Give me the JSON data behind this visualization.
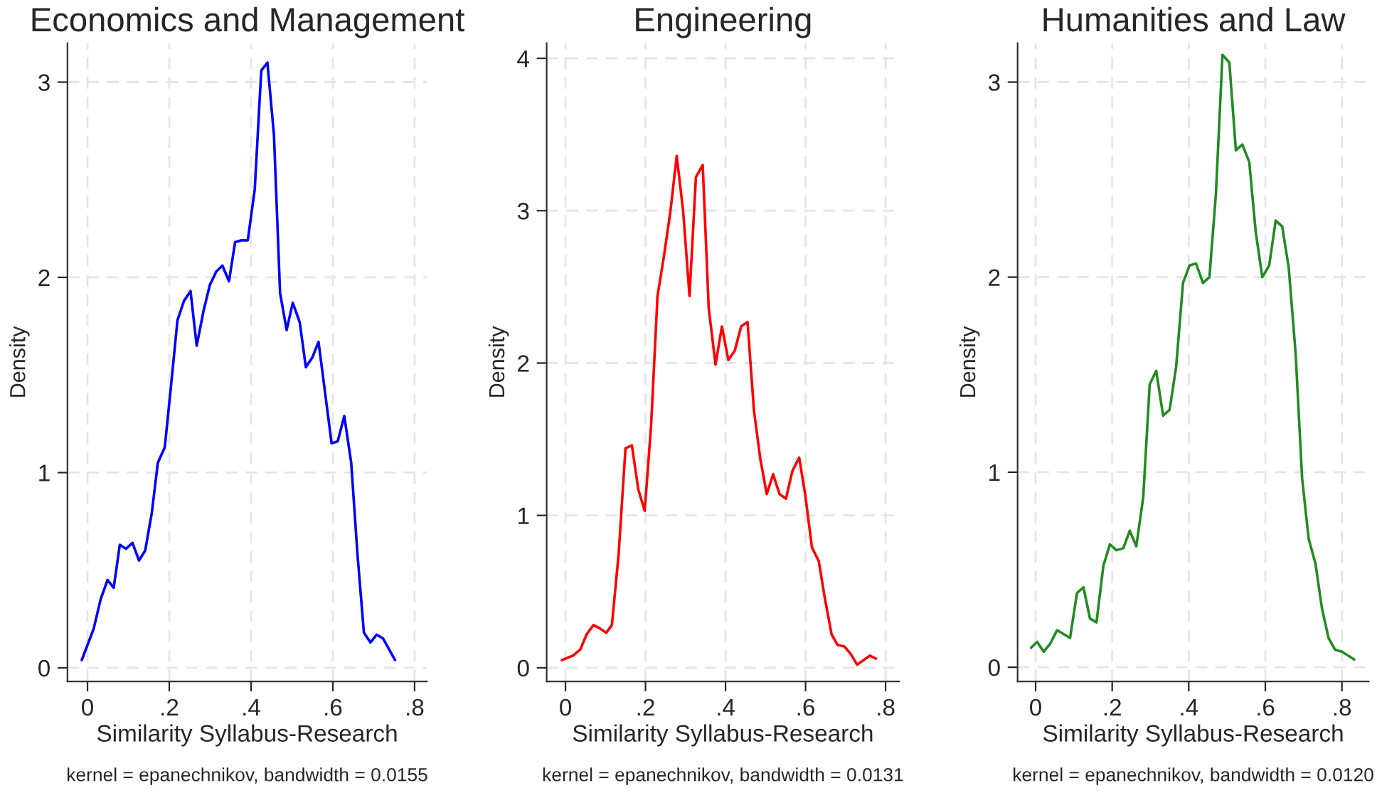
{
  "chart_data": [
    {
      "type": "line",
      "title": "Economics and Management",
      "xlabel": "Similarity Syllabus-Research",
      "ylabel": "Density",
      "annotations": [
        "kernel = epanechnikov, bandwidth = 0.0155"
      ],
      "grid": true,
      "xlim": [
        -0.049,
        0.83
      ],
      "ylim": [
        -0.07,
        3.2
      ],
      "xticks": [
        0,
        {
          "value": 0.2,
          "label": ".2"
        },
        {
          "value": 0.4,
          "label": ".4"
        },
        {
          "value": 0.6,
          "label": ".6"
        },
        {
          "value": 0.8,
          "label": ".8"
        }
      ],
      "yticks": [
        0,
        1,
        2,
        3
      ],
      "x": [
        -0.014,
        0.015,
        0.032,
        0.049,
        0.064,
        0.079,
        0.094,
        0.11,
        0.126,
        0.141,
        0.157,
        0.172,
        0.189,
        0.204,
        0.22,
        0.236,
        0.252,
        0.267,
        0.284,
        0.299,
        0.315,
        0.33,
        0.346,
        0.361,
        0.377,
        0.392,
        0.409,
        0.425,
        0.44,
        0.456,
        0.471,
        0.487,
        0.502,
        0.519,
        0.534,
        0.55,
        0.565,
        0.581,
        0.597,
        0.612,
        0.628,
        0.645,
        0.66,
        0.676,
        0.692,
        0.707,
        0.723,
        0.752
      ],
      "series": [
        {
          "color": "#0000ff",
          "values": [
            0.04,
            0.2,
            0.35,
            0.45,
            0.41,
            0.63,
            0.61,
            0.64,
            0.55,
            0.6,
            0.79,
            1.05,
            1.13,
            1.44,
            1.78,
            1.88,
            1.93,
            1.65,
            1.83,
            1.96,
            2.03,
            2.06,
            1.98,
            2.18,
            2.19,
            2.19,
            2.45,
            3.06,
            3.1,
            2.73,
            1.92,
            1.73,
            1.87,
            1.77,
            1.54,
            1.59,
            1.67,
            1.41,
            1.15,
            1.16,
            1.29,
            1.05,
            0.59,
            0.18,
            0.13,
            0.17,
            0.15,
            0.04
          ]
        }
      ]
    },
    {
      "type": "line",
      "title": "Engineering",
      "xlabel": "Similarity Syllabus-Research",
      "ylabel": "Density",
      "annotations": [
        "kernel = epanechnikov, bandwidth = 0.0131"
      ],
      "grid": true,
      "xlim": [
        -0.047,
        0.834
      ],
      "ylim": [
        -0.09,
        4.1
      ],
      "xticks": [
        0,
        {
          "value": 0.2,
          "label": ".2"
        },
        {
          "value": 0.4,
          "label": ".4"
        },
        {
          "value": 0.6,
          "label": ".6"
        },
        {
          "value": 0.8,
          "label": ".8"
        }
      ],
      "yticks": [
        0,
        1,
        2,
        3,
        4
      ],
      "x": [
        -0.009,
        0.019,
        0.037,
        0.053,
        0.07,
        0.085,
        0.102,
        0.116,
        0.133,
        0.15,
        0.166,
        0.182,
        0.198,
        0.214,
        0.23,
        0.246,
        0.262,
        0.278,
        0.294,
        0.31,
        0.326,
        0.343,
        0.358,
        0.375,
        0.391,
        0.407,
        0.423,
        0.439,
        0.455,
        0.471,
        0.487,
        0.503,
        0.519,
        0.535,
        0.551,
        0.567,
        0.584,
        0.599,
        0.616,
        0.633,
        0.648,
        0.665,
        0.68,
        0.697,
        0.713,
        0.729,
        0.761,
        0.776
      ],
      "series": [
        {
          "color": "#ff0000",
          "values": [
            0.05,
            0.08,
            0.12,
            0.22,
            0.28,
            0.26,
            0.23,
            0.28,
            0.75,
            1.44,
            1.46,
            1.17,
            1.03,
            1.59,
            2.44,
            2.7,
            2.99,
            3.36,
            3.0,
            2.44,
            3.22,
            3.3,
            2.36,
            1.99,
            2.24,
            2.02,
            2.08,
            2.24,
            2.27,
            1.69,
            1.37,
            1.14,
            1.27,
            1.14,
            1.11,
            1.29,
            1.38,
            1.14,
            0.79,
            0.7,
            0.46,
            0.22,
            0.15,
            0.14,
            0.09,
            0.02,
            0.08,
            0.06
          ]
        }
      ]
    },
    {
      "type": "line",
      "title": "Humanities and Law",
      "xlabel": "Similarity Syllabus-Research",
      "ylabel": "Density",
      "annotations": [
        "kernel = epanechnikov, bandwidth = 0.0120"
      ],
      "grid": true,
      "xlim": [
        -0.047,
        0.87
      ],
      "ylim": [
        -0.073,
        3.2
      ],
      "xticks": [
        0,
        {
          "value": 0.2,
          "label": ".2"
        },
        {
          "value": 0.4,
          "label": ".4"
        },
        {
          "value": 0.6,
          "label": ".6"
        },
        {
          "value": 0.8,
          "label": ".8"
        }
      ],
      "yticks": [
        0,
        1,
        2,
        3
      ],
      "x": [
        -0.012,
        0.004,
        0.021,
        0.038,
        0.056,
        0.073,
        0.09,
        0.108,
        0.125,
        0.142,
        0.159,
        0.177,
        0.194,
        0.211,
        0.229,
        0.246,
        0.263,
        0.281,
        0.298,
        0.315,
        0.333,
        0.35,
        0.367,
        0.385,
        0.402,
        0.419,
        0.437,
        0.454,
        0.471,
        0.488,
        0.506,
        0.523,
        0.54,
        0.558,
        0.575,
        0.592,
        0.61,
        0.627,
        0.644,
        0.661,
        0.679,
        0.696,
        0.713,
        0.731,
        0.748,
        0.765,
        0.782,
        0.8,
        0.832
      ],
      "series": [
        {
          "color": "#228b22",
          "values": [
            0.1,
            0.13,
            0.08,
            0.12,
            0.19,
            0.17,
            0.15,
            0.38,
            0.41,
            0.25,
            0.23,
            0.52,
            0.63,
            0.6,
            0.61,
            0.7,
            0.62,
            0.87,
            1.45,
            1.52,
            1.29,
            1.32,
            1.54,
            1.97,
            2.06,
            2.07,
            1.97,
            2.0,
            2.43,
            3.14,
            3.1,
            2.65,
            2.68,
            2.59,
            2.23,
            2.0,
            2.06,
            2.29,
            2.26,
            2.05,
            1.61,
            0.97,
            0.66,
            0.53,
            0.3,
            0.15,
            0.09,
            0.08,
            0.04
          ]
        }
      ]
    }
  ]
}
